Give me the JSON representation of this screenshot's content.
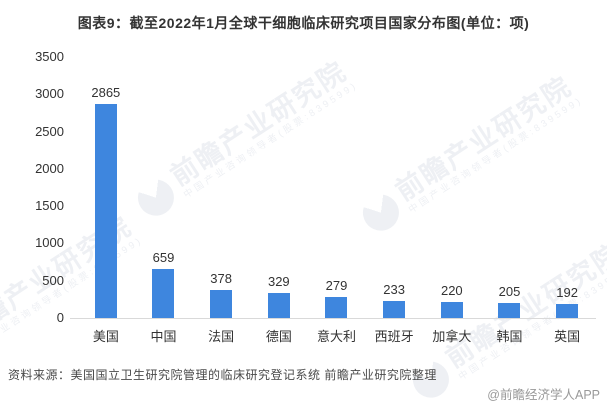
{
  "title": "图表9：截至2022年1月全球干细胞临床研究项目国家分布图(单位：项)",
  "chart_data": {
    "type": "bar",
    "title": "图表9：截至2022年1月全球干细胞临床研究项目国家分布图(单位：项)",
    "categories": [
      "美国",
      "中国",
      "法国",
      "德国",
      "意大利",
      "西班牙",
      "加拿大",
      "韩国",
      "英国"
    ],
    "values": [
      2865,
      659,
      378,
      329,
      279,
      233,
      220,
      205,
      192
    ],
    "xlabel": "",
    "ylabel": "",
    "ylim": [
      0,
      3500
    ],
    "yticks": [
      0,
      500,
      1000,
      1500,
      2000,
      2500,
      3000,
      3500
    ],
    "grid": false,
    "legend": false,
    "value_labels": true,
    "bar_color": "#3E86DE"
  },
  "footer": {
    "source": "资料来源：美国国立卫生研究院管理的临床研究登记系统 前瞻产业研究院整理",
    "credit": "@前瞻经济学人APP"
  },
  "watermark": {
    "title": "前瞻产业研究院",
    "subtitle": "中国产业咨询领导者(股票:839599)"
  },
  "colors": {
    "bar": "#3E86DE",
    "axis_line": "#d9d9d9",
    "text": "#333333",
    "source_text": "#4a4a4a",
    "credit_text": "#999999",
    "watermark": "#eef0f4"
  }
}
